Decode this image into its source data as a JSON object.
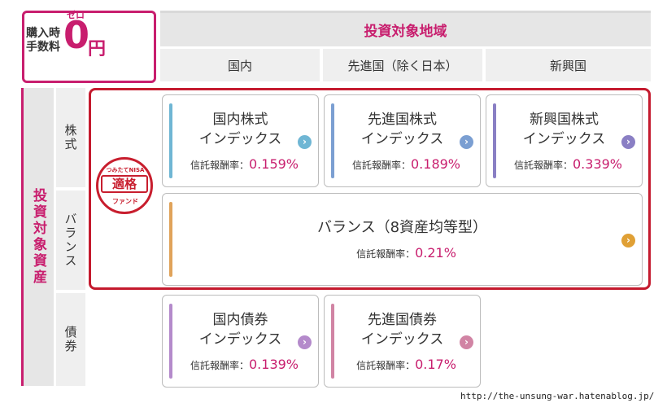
{
  "fee": {
    "label_line1": "購入時",
    "label_line2": "手数料",
    "ruby": "ゼロ",
    "amount": "0",
    "unit": "円"
  },
  "region": {
    "title": "投資対象地域",
    "columns": [
      "国内",
      "先進国（除く日本）",
      "新興国"
    ]
  },
  "asset": {
    "title": "投資対象資産",
    "rows": [
      "株式",
      "バランス",
      "債券"
    ]
  },
  "badge": {
    "top": "つみたてNISA",
    "mid": "適格",
    "bot": "ファンド"
  },
  "fee_key": "信託報酬率：",
  "funds": {
    "domestic_stock": {
      "line1": "国内株式",
      "line2": "インデックス",
      "fee": "0.159%",
      "color": "#6fb6d4",
      "arrow_color": "#6fb6d4"
    },
    "developed_stock": {
      "line1": "先進国株式",
      "line2": "インデックス",
      "fee": "0.189%",
      "color": "#7b9fd2",
      "arrow_color": "#7b9fd2"
    },
    "emerging_stock": {
      "line1": "新興国株式",
      "line2": "インデックス",
      "fee": "0.339%",
      "color": "#8a7fc4",
      "arrow_color": "#8a7fc4"
    },
    "balance": {
      "line1": "バランス（8資産均等型）",
      "fee": "0.21%",
      "color": "#e0a35a",
      "arrow_color": "#e0a035"
    },
    "domestic_bond": {
      "line1": "国内債券",
      "line2": "インデックス",
      "fee": "0.139%",
      "color": "#b48acb",
      "arrow_color": "#b48acb"
    },
    "developed_bond": {
      "line1": "先進国債券",
      "line2": "インデックス",
      "fee": "0.17%",
      "color": "#d184a4",
      "arrow_color": "#d184a4"
    }
  },
  "source_url": "http://the-unsung-war.hatenablog.jp/"
}
